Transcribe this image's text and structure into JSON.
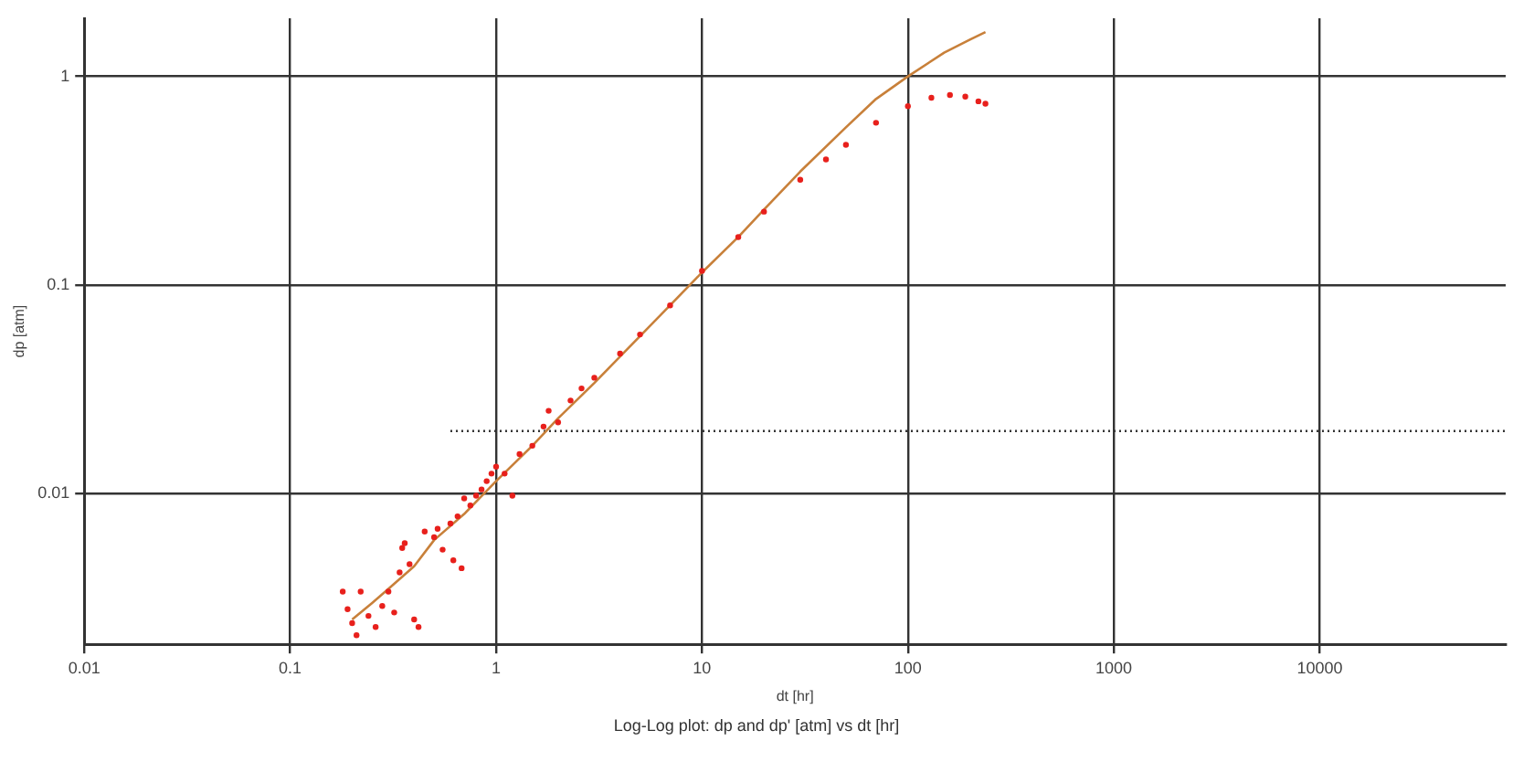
{
  "chart_data": {
    "type": "scatter",
    "xlabel": "dt [hr]",
    "ylabel": "dp [atm]",
    "log": "xy",
    "grid": true,
    "legend": false,
    "xlim": [
      0.01,
      80000
    ],
    "xticks": [
      0.01,
      0.1,
      1,
      10,
      100,
      1000,
      10000
    ],
    "ylim": [
      0.0019,
      1.9
    ],
    "yticks": [
      0.01,
      0.1,
      1
    ],
    "series": [
      {
        "type": "line",
        "color": "#c8803a",
        "x": [
          0.2,
          0.25,
          0.3,
          0.4,
          0.5,
          0.7,
          1,
          1.5,
          2,
          3,
          5,
          7,
          10,
          15,
          20,
          30,
          50,
          70,
          100,
          150,
          200,
          238
        ],
        "values": [
          0.0025,
          0.003,
          0.0035,
          0.0045,
          0.006,
          0.008,
          0.0115,
          0.017,
          0.023,
          0.034,
          0.057,
          0.08,
          0.115,
          0.17,
          0.23,
          0.35,
          0.57,
          0.78,
          1.0,
          1.3,
          1.5,
          1.63
        ]
      },
      {
        "marker": "circle",
        "color": "#e8201c",
        "x": [
          0.18,
          0.19,
          0.2,
          0.21,
          0.22,
          0.24,
          0.26,
          0.28,
          0.3,
          0.32,
          0.34,
          0.35,
          0.36,
          0.38,
          0.4,
          0.42,
          0.45,
          0.5,
          0.52,
          0.55,
          0.6,
          0.62,
          0.65,
          0.68,
          0.7,
          0.75,
          0.8,
          0.85,
          0.9,
          0.95,
          1.0,
          1.1,
          1.2,
          1.3,
          1.5,
          1.7,
          1.8,
          2,
          2.3,
          2.6,
          3,
          4,
          5,
          7,
          10,
          15,
          20,
          30,
          40,
          50,
          70,
          100,
          130,
          160,
          190,
          220,
          238
        ],
        "values": [
          0.0034,
          0.0028,
          0.0024,
          0.0021,
          0.0034,
          0.0026,
          0.0023,
          0.0029,
          0.0034,
          0.0027,
          0.0042,
          0.0055,
          0.0058,
          0.0046,
          0.0025,
          0.0023,
          0.0066,
          0.0062,
          0.0068,
          0.0054,
          0.0072,
          0.0048,
          0.0078,
          0.0044,
          0.0095,
          0.0088,
          0.0098,
          0.0105,
          0.0115,
          0.0125,
          0.0135,
          0.0125,
          0.0098,
          0.0155,
          0.017,
          0.021,
          0.025,
          0.022,
          0.028,
          0.032,
          0.036,
          0.047,
          0.058,
          0.08,
          0.117,
          0.17,
          0.225,
          0.32,
          0.4,
          0.47,
          0.6,
          0.72,
          0.79,
          0.815,
          0.8,
          0.76,
          0.74
        ]
      },
      {
        "type": "line",
        "color": "#333333",
        "line_style": "dotted",
        "x": [
          0.6,
          80000
        ],
        "values": [
          0.02,
          0.02
        ]
      }
    ],
    "annotations": [
      "Log-Log plot: dp and dp'  [atm] vs dt [hr]"
    ]
  }
}
